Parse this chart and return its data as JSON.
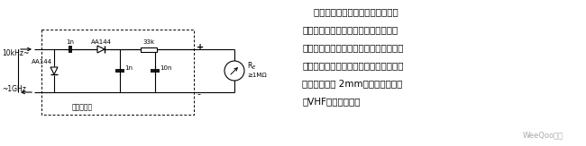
{
  "bg_color": "#ffffff",
  "title_lines": [
    "    图中示出峰值整流的倍压电路作为",
    "测试头电路，用于控制高欧姆显示回路",
    "（场效应电压表）。由于所有高频元件均",
    "采用极短的引线，故可在高频下工作。引",
    "线长度不超过 2mm，则可在甚高频",
    "（VHF）区域工作。"
  ],
  "watermark": "WeeQoo维库",
  "input_label_1": "10kHz~",
  "input_label_2": "~1GHz",
  "dashed_box_label": "极短的引线",
  "cap1_label": "1n",
  "diode1_label": "AA144",
  "res1_label": "33k",
  "plus_label": "+",
  "minus_label": "-",
  "diode2_label": "AA144",
  "cap2_label": "1n",
  "cap3_label": "10n",
  "RE_label": "RE",
  "RE_val": "≥1MΩ"
}
